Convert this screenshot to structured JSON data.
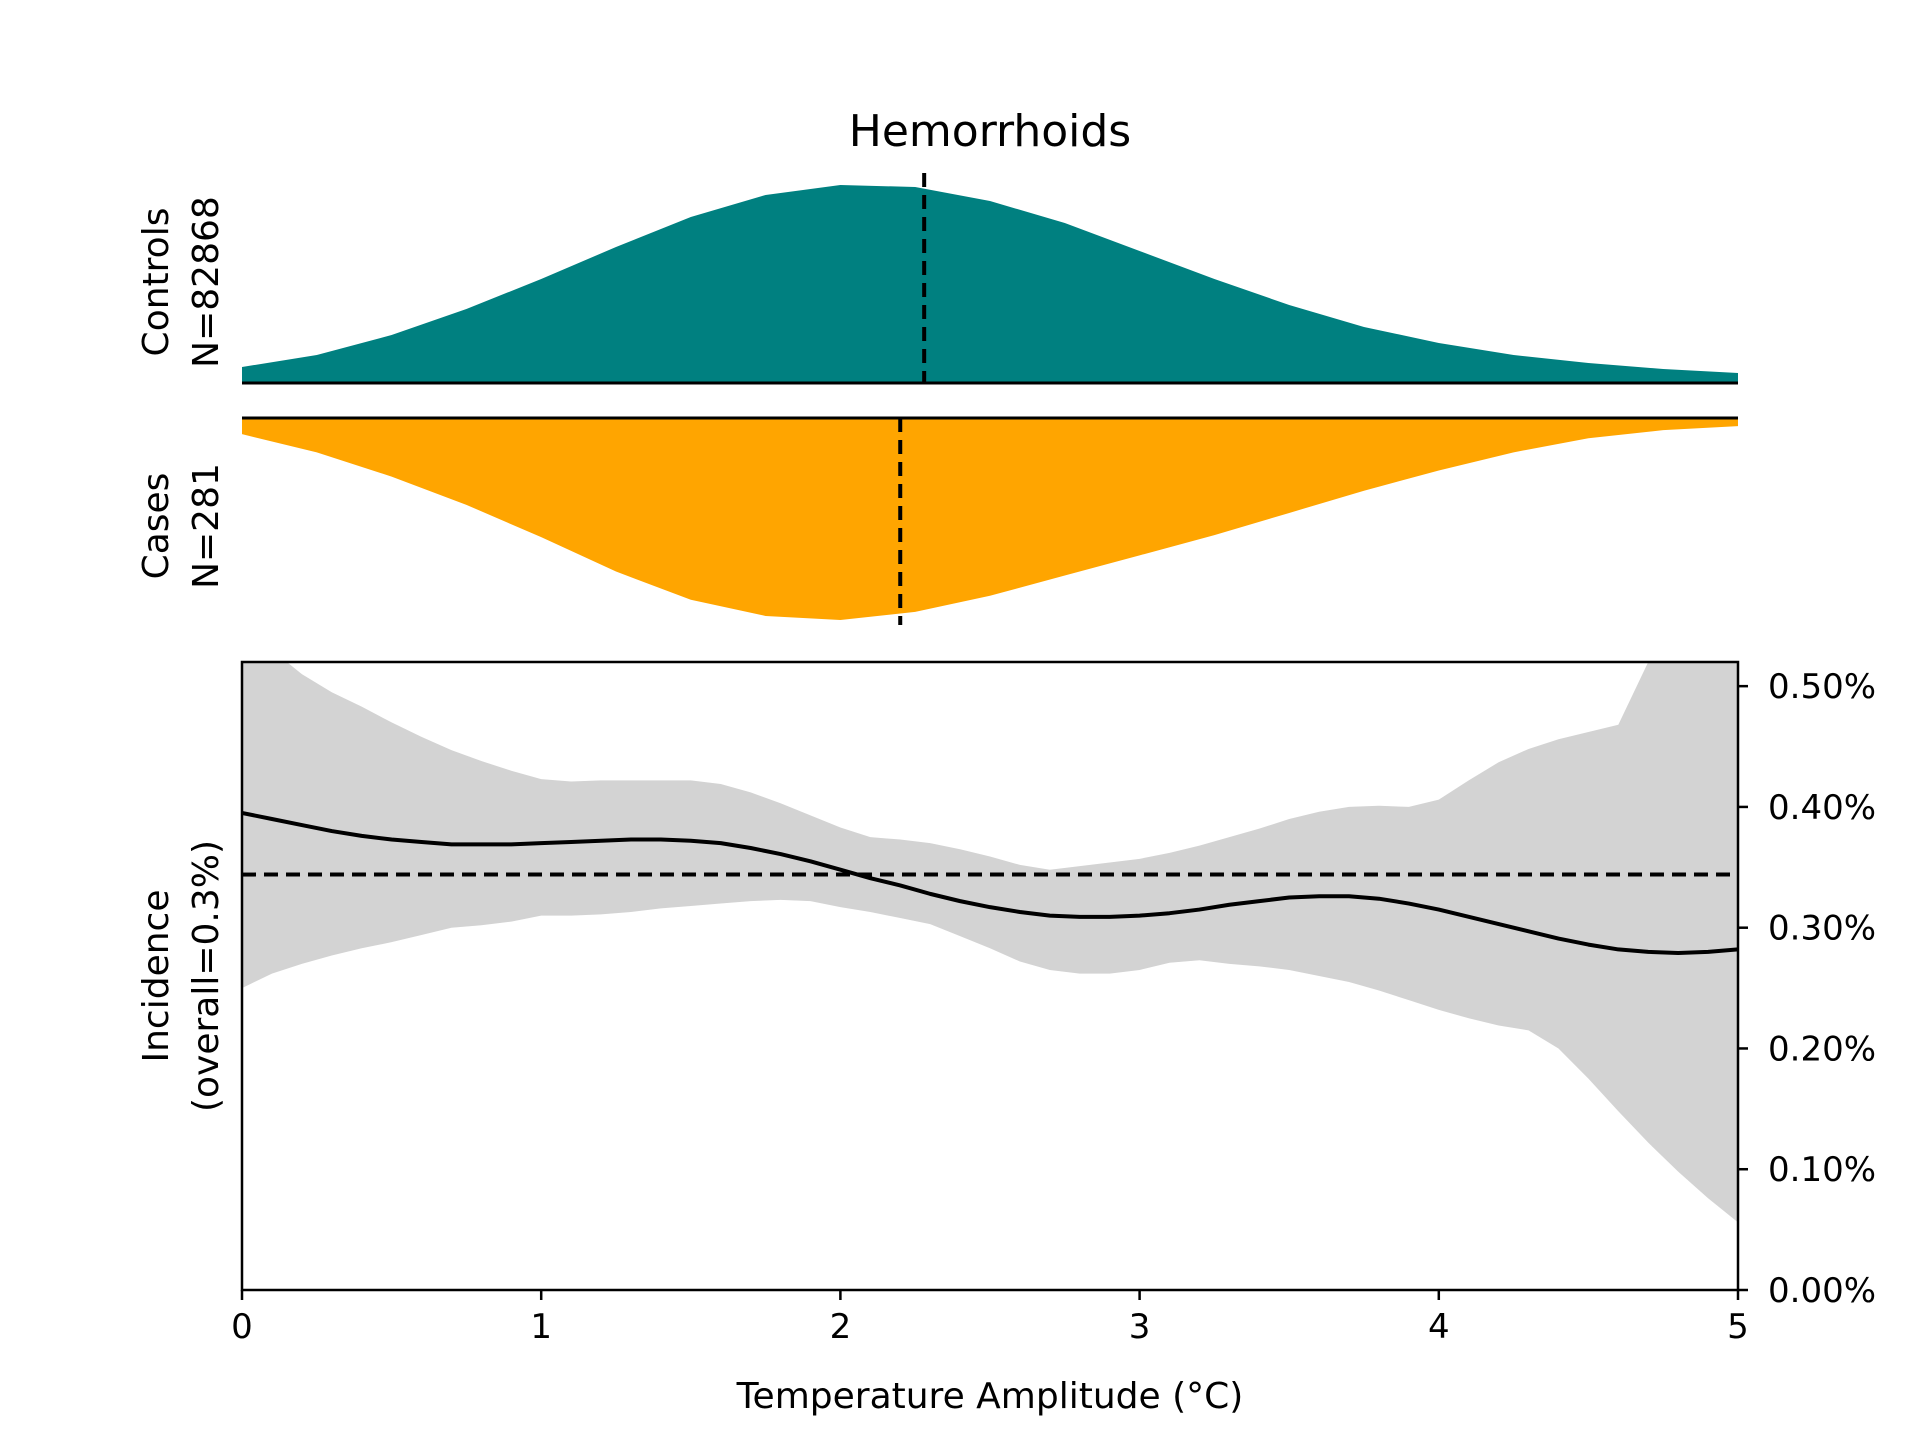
{
  "chart_data": {
    "type": "area",
    "title": "Hemorrhoids",
    "colors": {
      "controls": "#008080",
      "cases": "#FFA500",
      "ci_band": "#D3D3D3",
      "line": "#000000"
    },
    "xlabel": "Temperature Amplitude (°C)",
    "xlim": [
      0,
      5
    ],
    "xticks": [
      0,
      1,
      2,
      3,
      4,
      5
    ],
    "xtick_labels": [
      "0",
      "1",
      "2",
      "3",
      "4",
      "5"
    ],
    "controls": {
      "label_line1": "Controls",
      "label_line2": "N=82868",
      "median": 2.28,
      "density_x": [
        0,
        0.25,
        0.5,
        0.75,
        1.0,
        1.25,
        1.5,
        1.75,
        2.0,
        2.25,
        2.5,
        2.75,
        3.0,
        3.25,
        3.5,
        3.75,
        4.0,
        4.25,
        4.5,
        4.75,
        5.0
      ],
      "density": [
        0.08,
        0.14,
        0.24,
        0.37,
        0.52,
        0.68,
        0.83,
        0.94,
        0.99,
        0.98,
        0.91,
        0.8,
        0.66,
        0.52,
        0.39,
        0.28,
        0.2,
        0.14,
        0.1,
        0.07,
        0.05
      ]
    },
    "cases": {
      "label_line1": "Cases",
      "label_line2": "N=281",
      "median": 2.2,
      "density_x": [
        0,
        0.25,
        0.5,
        0.75,
        1.0,
        1.25,
        1.5,
        1.75,
        2.0,
        2.25,
        2.5,
        2.75,
        3.0,
        3.25,
        3.5,
        3.75,
        4.0,
        4.25,
        4.5,
        4.75,
        5.0
      ],
      "density": [
        0.08,
        0.17,
        0.29,
        0.43,
        0.59,
        0.76,
        0.9,
        0.98,
        1.0,
        0.96,
        0.88,
        0.78,
        0.68,
        0.58,
        0.47,
        0.36,
        0.26,
        0.17,
        0.1,
        0.06,
        0.04
      ]
    },
    "incidence": {
      "ylabel_line1": "Incidence",
      "ylabel_line2": "(overall=0.3%)",
      "ylim": [
        0,
        0.0052
      ],
      "yticks": [
        0,
        0.001,
        0.002,
        0.003,
        0.004,
        0.005
      ],
      "ytick_labels": [
        "0.00%",
        "0.10%",
        "0.20%",
        "0.30%",
        "0.40%",
        "0.50%"
      ],
      "overall": 0.00344,
      "x": [
        0,
        0.1,
        0.2,
        0.3,
        0.4,
        0.5,
        0.6,
        0.7,
        0.8,
        0.9,
        1.0,
        1.1,
        1.2,
        1.3,
        1.4,
        1.5,
        1.6,
        1.7,
        1.8,
        1.9,
        2.0,
        2.1,
        2.2,
        2.3,
        2.4,
        2.5,
        2.6,
        2.7,
        2.8,
        2.9,
        3.0,
        3.1,
        3.2,
        3.3,
        3.4,
        3.5,
        3.6,
        3.7,
        3.8,
        3.9,
        4.0,
        4.1,
        4.2,
        4.3,
        4.4,
        4.5,
        4.6,
        4.7,
        4.8,
        4.9,
        5.0
      ],
      "y": [
        0.00395,
        0.0039,
        0.00385,
        0.0038,
        0.00376,
        0.00373,
        0.00371,
        0.00369,
        0.00369,
        0.00369,
        0.0037,
        0.00371,
        0.00372,
        0.00373,
        0.00373,
        0.00372,
        0.0037,
        0.00366,
        0.00361,
        0.00355,
        0.00348,
        0.00341,
        0.00335,
        0.00328,
        0.00322,
        0.00317,
        0.00313,
        0.0031,
        0.00309,
        0.00309,
        0.0031,
        0.00312,
        0.00315,
        0.00319,
        0.00322,
        0.00325,
        0.00326,
        0.00326,
        0.00324,
        0.0032,
        0.00315,
        0.00309,
        0.00303,
        0.00297,
        0.00291,
        0.00286,
        0.00282,
        0.0028,
        0.00279,
        0.0028,
        0.00282
      ],
      "ci_lower": [
        0.0025,
        0.00262,
        0.0027,
        0.00277,
        0.00283,
        0.00288,
        0.00294,
        0.003,
        0.00302,
        0.00305,
        0.0031,
        0.0031,
        0.00311,
        0.00313,
        0.00316,
        0.00318,
        0.0032,
        0.00322,
        0.00323,
        0.00322,
        0.00317,
        0.00313,
        0.00308,
        0.00303,
        0.00293,
        0.00283,
        0.00272,
        0.00265,
        0.00262,
        0.00262,
        0.00265,
        0.00271,
        0.00273,
        0.0027,
        0.00268,
        0.00265,
        0.0026,
        0.00255,
        0.00248,
        0.0024,
        0.00232,
        0.00225,
        0.00219,
        0.00215,
        0.002,
        0.00175,
        0.00148,
        0.00122,
        0.00098,
        0.00076,
        0.00056
      ],
      "ci_upper": [
        0.0054,
        0.0053,
        0.0051,
        0.00495,
        0.00483,
        0.0047,
        0.00458,
        0.00447,
        0.00438,
        0.0043,
        0.00423,
        0.00421,
        0.00422,
        0.00422,
        0.00422,
        0.00422,
        0.00419,
        0.00412,
        0.00403,
        0.00393,
        0.00383,
        0.00375,
        0.00373,
        0.0037,
        0.00365,
        0.00359,
        0.00352,
        0.00348,
        0.00351,
        0.00354,
        0.00357,
        0.00362,
        0.00368,
        0.00375,
        0.00382,
        0.0039,
        0.00396,
        0.004,
        0.00401,
        0.004,
        0.00406,
        0.00422,
        0.00437,
        0.00448,
        0.00456,
        0.00462,
        0.00468,
        0.0052,
        0.0056,
        0.0056,
        0.0056
      ]
    }
  }
}
